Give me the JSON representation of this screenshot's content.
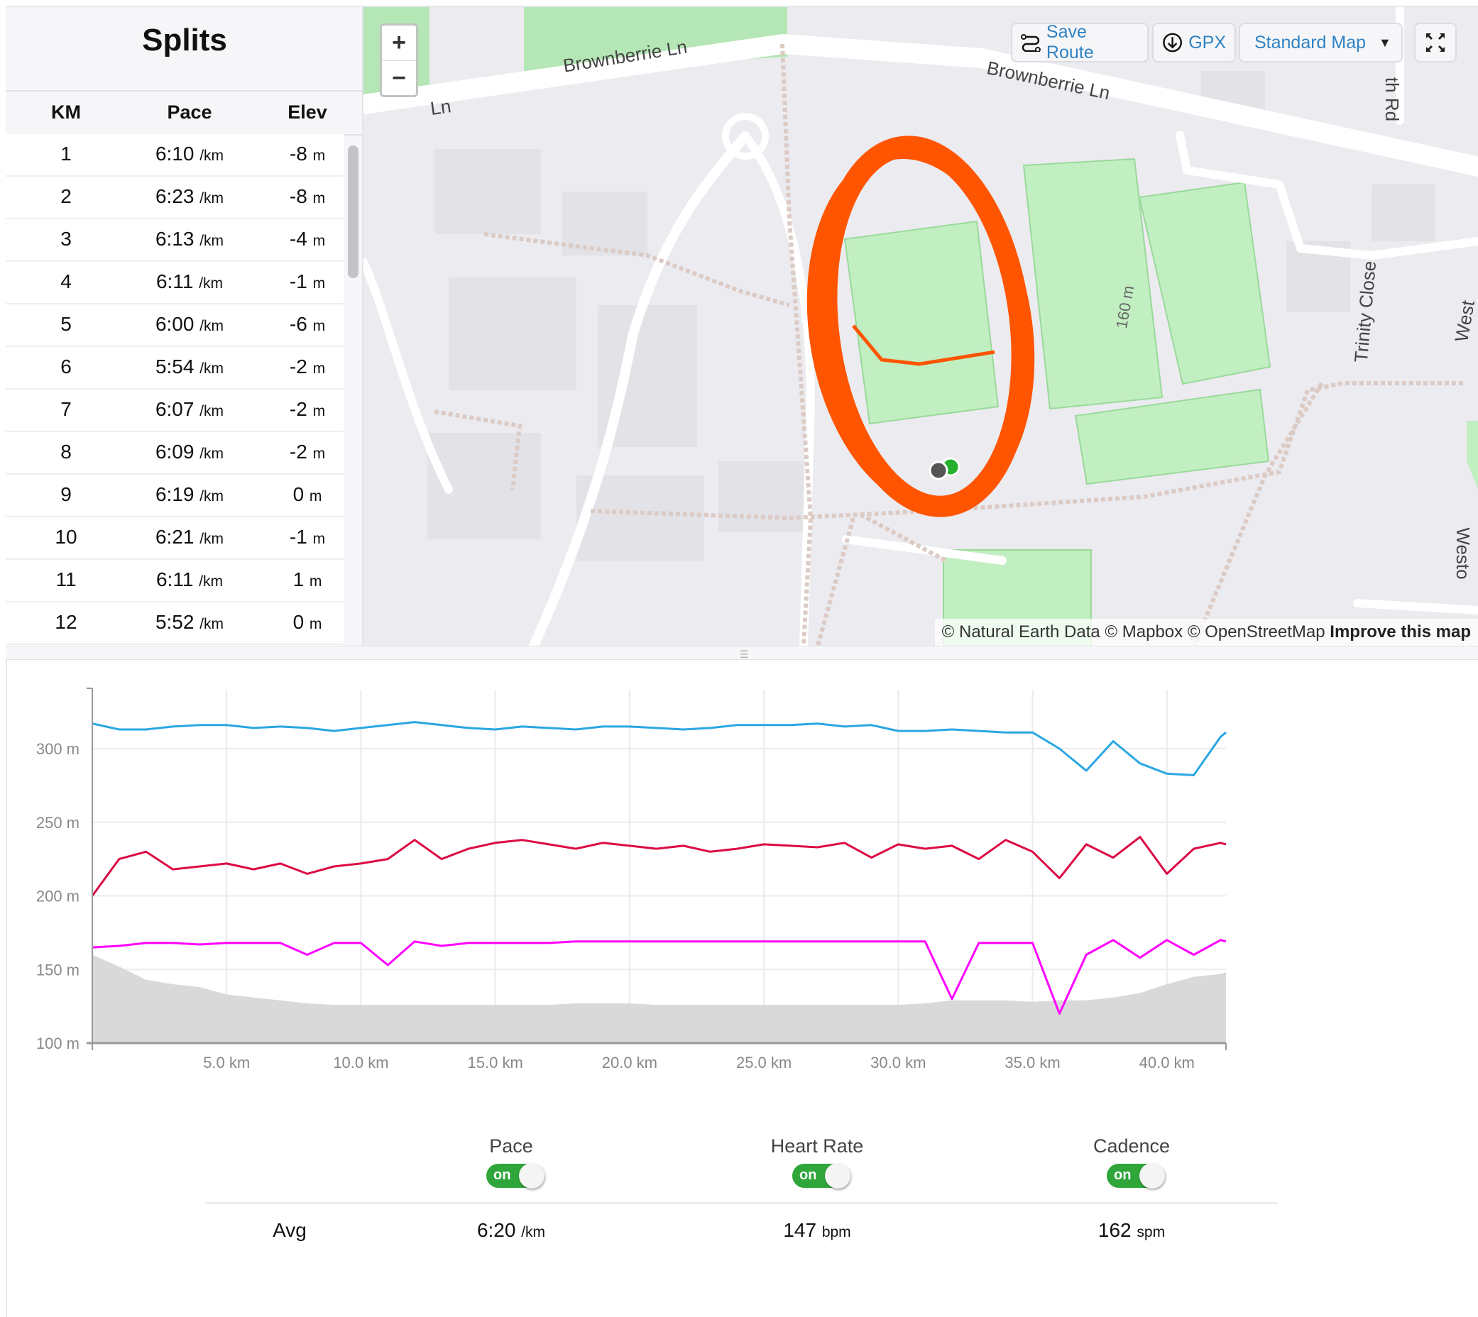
{
  "splits": {
    "title": "Splits",
    "columns": [
      "KM",
      "Pace",
      "Elev"
    ],
    "pace_unit": "/km",
    "elev_unit": "m",
    "rows": [
      {
        "km": "1",
        "pace": "6:10",
        "elev": "-8"
      },
      {
        "km": "2",
        "pace": "6:23",
        "elev": "-8"
      },
      {
        "km": "3",
        "pace": "6:13",
        "elev": "-4"
      },
      {
        "km": "4",
        "pace": "6:11",
        "elev": "-1"
      },
      {
        "km": "5",
        "pace": "6:00",
        "elev": "-6"
      },
      {
        "km": "6",
        "pace": "5:54",
        "elev": "-2"
      },
      {
        "km": "7",
        "pace": "6:07",
        "elev": "-2"
      },
      {
        "km": "8",
        "pace": "6:09",
        "elev": "-2"
      },
      {
        "km": "9",
        "pace": "6:19",
        "elev": "0"
      },
      {
        "km": "10",
        "pace": "6:21",
        "elev": "-1"
      },
      {
        "km": "11",
        "pace": "6:11",
        "elev": "1"
      },
      {
        "km": "12",
        "pace": "5:52",
        "elev": "0"
      }
    ]
  },
  "map": {
    "zoom_in": "+",
    "zoom_out": "−",
    "save_route": "Save Route",
    "gpx": "GPX",
    "map_style": "Standard Map",
    "labels": {
      "road1": "Brownberrie Ln",
      "road2": "Brownberrie Ln",
      "road3": "Ln",
      "distance": "160 m",
      "close": "Trinity Close",
      "rd": "th Rd",
      "west1": "West",
      "west2": "Westo"
    },
    "attribution": "© Natural Earth Data © Mapbox © OpenStreetMap",
    "improve": "Improve this map",
    "colors": {
      "route": "#ff5500",
      "park": "#c2efc2",
      "land": "#ebebf0",
      "road": "#ffffff"
    }
  },
  "chart_data": {
    "type": "line",
    "xlabel": "",
    "ylabel": "",
    "xlim": [
      0,
      42.2
    ],
    "ylim": [
      100,
      340
    ],
    "x_ticks": [
      "5.0 km",
      "10.0 km",
      "15.0 km",
      "20.0 km",
      "25.0 km",
      "30.0 km",
      "35.0 km",
      "40.0 km"
    ],
    "x_tick_values": [
      5,
      10,
      15,
      20,
      25,
      30,
      35,
      40
    ],
    "y_ticks": [
      "100 m",
      "150 m",
      "200 m",
      "250 m",
      "300 m"
    ],
    "y_tick_values": [
      100,
      150,
      200,
      250,
      300
    ],
    "grid": true,
    "x": [
      0,
      1,
      2,
      3,
      4,
      5,
      6,
      7,
      8,
      9,
      10,
      11,
      12,
      13,
      14,
      15,
      16,
      17,
      18,
      19,
      20,
      21,
      22,
      23,
      24,
      25,
      26,
      27,
      28,
      29,
      30,
      31,
      32,
      33,
      34,
      35,
      36,
      37,
      38,
      39,
      40,
      41,
      42,
      42.2
    ],
    "series": [
      {
        "key": "pace",
        "color": "#2aa7e2",
        "values": [
          317,
          313,
          313,
          315,
          316,
          316,
          314,
          315,
          314,
          312,
          314,
          316,
          318,
          316,
          314,
          313,
          315,
          314,
          313,
          315,
          315,
          314,
          313,
          314,
          316,
          316,
          316,
          317,
          315,
          316,
          312,
          312,
          313,
          312,
          311,
          311,
          300,
          285,
          305,
          290,
          283,
          282,
          308,
          311
        ]
      },
      {
        "key": "heart_rate",
        "color": "#dc0a43",
        "values": [
          200,
          225,
          230,
          218,
          220,
          222,
          218,
          222,
          215,
          220,
          222,
          225,
          238,
          225,
          232,
          236,
          238,
          235,
          232,
          236,
          234,
          232,
          234,
          230,
          232,
          235,
          234,
          233,
          236,
          226,
          235,
          232,
          234,
          225,
          238,
          230,
          212,
          235,
          226,
          240,
          215,
          232,
          236,
          235
        ]
      },
      {
        "key": "cadence",
        "color": "#ff00ff",
        "values": [
          165,
          166,
          168,
          168,
          167,
          168,
          168,
          168,
          160,
          168,
          168,
          153,
          169,
          166,
          168,
          168,
          168,
          168,
          169,
          169,
          169,
          169,
          169,
          169,
          169,
          169,
          169,
          169,
          169,
          169,
          169,
          169,
          130,
          168,
          168,
          168,
          120,
          160,
          170,
          158,
          170,
          160,
          170,
          169
        ]
      },
      {
        "key": "elevation",
        "color": "#d9d9d9",
        "fill": true,
        "values": [
          160,
          152,
          143,
          140,
          138,
          133,
          131,
          129,
          127,
          126,
          126,
          126,
          126,
          126,
          126,
          126,
          126,
          126,
          127,
          127,
          127,
          126,
          126,
          126,
          126,
          126,
          126,
          126,
          126,
          126,
          126,
          127,
          129,
          129,
          129,
          128,
          129,
          129,
          131,
          134,
          140,
          145,
          147,
          148
        ]
      }
    ]
  },
  "toggles": [
    {
      "label": "Pace",
      "state": "on"
    },
    {
      "label": "Heart Rate",
      "state": "on"
    },
    {
      "label": "Cadence",
      "state": "on"
    }
  ],
  "averages": {
    "label": "Avg",
    "pace": "6:20",
    "pace_unit": "/km",
    "heart_rate": "147",
    "heart_rate_unit": "bpm",
    "cadence": "162",
    "cadence_unit": "spm"
  }
}
